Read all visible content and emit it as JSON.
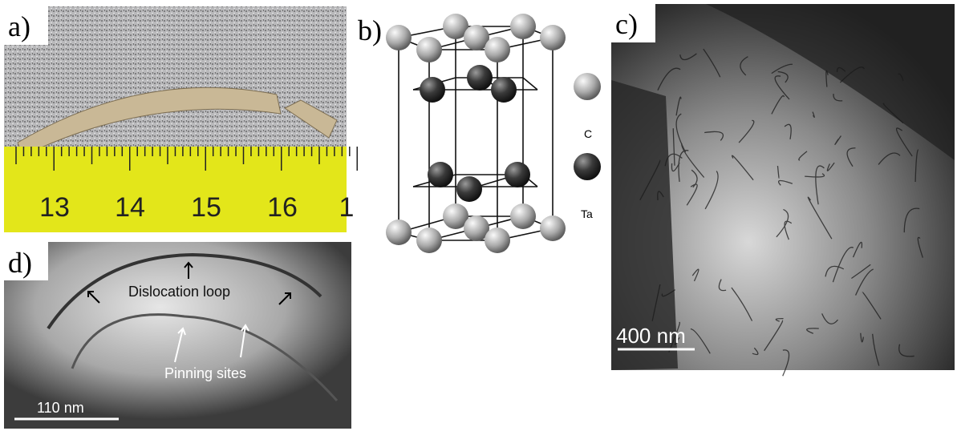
{
  "panels": [
    {
      "label": "a)",
      "ruler_labels": [
        "13",
        "14",
        "15",
        "16",
        "1"
      ]
    },
    {
      "label": "b)",
      "legend": [
        "C",
        "Ta"
      ]
    },
    {
      "label": "c)",
      "scale_bar": "400 nm"
    },
    {
      "label": "d)",
      "annotations": [
        "Dislocation loop",
        "Pinning sites"
      ],
      "scale_bar": "110 nm"
    }
  ]
}
